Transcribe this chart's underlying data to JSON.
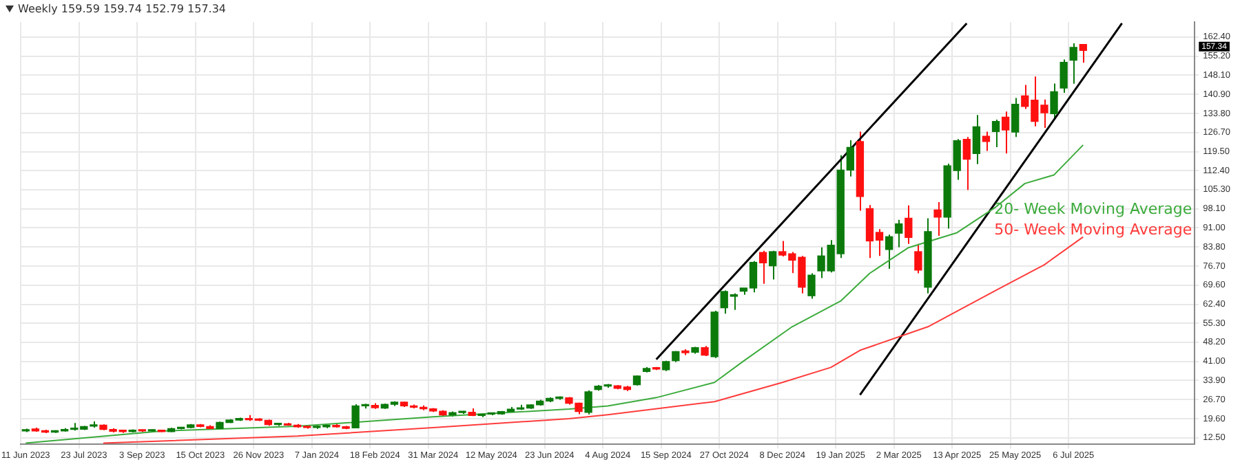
{
  "chart_data": {
    "type": "candlestick",
    "title": "Weekly 159.59 159.74 152.79 157.34",
    "categories": [
      "11 Jun 2023",
      null,
      null,
      null,
      null,
      null,
      "23 Jul 2023",
      null,
      null,
      null,
      null,
      null,
      "3 Sep 2023",
      null,
      null,
      null,
      null,
      null,
      "15 Oct 2023",
      null,
      null,
      null,
      null,
      null,
      "26 Nov 2023",
      null,
      null,
      null,
      null,
      null,
      "7 Jan 2024",
      null,
      null,
      null,
      null,
      null,
      "18 Feb 2024",
      null,
      null,
      null,
      null,
      null,
      "31 Mar 2024",
      null,
      null,
      null,
      null,
      null,
      "12 May 2024",
      null,
      null,
      null,
      null,
      null,
      "23 Jun 2024",
      null,
      null,
      null,
      null,
      null,
      "4 Aug 2024",
      null,
      null,
      null,
      null,
      null,
      "15 Sep 2024",
      null,
      null,
      null,
      null,
      null,
      "27 Oct 2024",
      null,
      null,
      null,
      null,
      null,
      "8 Dec 2024",
      null,
      null,
      null,
      null,
      null,
      "19 Jan 2025",
      null,
      null,
      null,
      null,
      null,
      "2 Mar 2025",
      null,
      null,
      null,
      null,
      null,
      "13 Apr 2025",
      null,
      null,
      null,
      null,
      null,
      "25 May 2025",
      null,
      null,
      null,
      null,
      null,
      "6 Jul 2025",
      null,
      null,
      null,
      null,
      null,
      null,
      null,
      null,
      null,
      null,
      null,
      null
    ],
    "ohlc": [
      [
        15.0,
        15.9,
        14.6,
        15.5
      ],
      [
        15.8,
        16.3,
        14.7,
        15.0
      ],
      [
        15.1,
        15.5,
        14.2,
        14.6
      ],
      [
        14.6,
        15.3,
        14.3,
        15.0
      ],
      [
        15.0,
        16.1,
        14.8,
        15.6
      ],
      [
        15.6,
        18.0,
        15.2,
        15.7
      ],
      [
        15.7,
        16.9,
        15.4,
        16.7
      ],
      [
        16.8,
        18.6,
        16.3,
        17.0
      ],
      [
        17.2,
        17.5,
        15.3,
        15.6
      ],
      [
        15.6,
        16.0,
        14.5,
        14.9
      ],
      [
        14.9,
        15.3,
        14.3,
        14.8
      ],
      [
        14.8,
        15.6,
        14.5,
        15.2
      ],
      [
        15.2,
        15.5,
        14.6,
        15.0
      ],
      [
        15.0,
        15.6,
        14.7,
        15.3
      ],
      [
        15.3,
        15.5,
        14.6,
        14.8
      ],
      [
        14.8,
        16.2,
        14.6,
        15.9
      ],
      [
        15.9,
        16.5,
        15.6,
        16.3
      ],
      [
        16.3,
        17.6,
        16.0,
        17.3
      ],
      [
        17.3,
        17.6,
        16.4,
        16.7
      ],
      [
        16.7,
        17.2,
        15.6,
        15.9
      ],
      [
        15.9,
        18.5,
        15.7,
        18.2
      ],
      [
        18.2,
        19.4,
        18.0,
        19.1
      ],
      [
        19.1,
        20.0,
        18.8,
        19.7
      ],
      [
        19.7,
        21.0,
        18.8,
        19.2
      ],
      [
        19.3,
        19.8,
        18.7,
        19.0
      ],
      [
        19.0,
        19.3,
        17.0,
        17.4
      ],
      [
        17.4,
        17.9,
        16.9,
        17.5
      ],
      [
        17.6,
        18.1,
        17.0,
        17.2
      ],
      [
        17.2,
        17.6,
        16.2,
        16.6
      ],
      [
        16.6,
        17.0,
        15.9,
        16.3
      ],
      [
        16.3,
        17.0,
        15.8,
        16.6
      ],
      [
        16.6,
        17.3,
        16.1,
        16.8
      ],
      [
        17.0,
        17.6,
        16.3,
        16.6
      ],
      [
        16.6,
        16.9,
        15.7,
        16.0
      ],
      [
        16.2,
        25.0,
        16.1,
        24.4
      ],
      [
        24.4,
        25.2,
        23.4,
        24.7
      ],
      [
        24.6,
        25.4,
        23.3,
        23.7
      ],
      [
        23.6,
        25.3,
        23.3,
        25.0
      ],
      [
        25.0,
        26.1,
        24.4,
        25.8
      ],
      [
        25.8,
        26.0,
        24.0,
        24.4
      ],
      [
        24.4,
        24.9,
        23.5,
        23.9
      ],
      [
        23.9,
        24.6,
        22.8,
        23.3
      ],
      [
        23.3,
        23.6,
        22.1,
        22.5
      ],
      [
        22.4,
        22.8,
        20.6,
        21.0
      ],
      [
        21.0,
        22.3,
        20.4,
        21.9
      ],
      [
        21.9,
        22.5,
        21.4,
        22.0
      ],
      [
        22.0,
        23.5,
        20.6,
        20.8
      ],
      [
        20.8,
        21.6,
        20.2,
        21.3
      ],
      [
        21.3,
        21.8,
        20.9,
        21.4
      ],
      [
        21.4,
        22.5,
        21.1,
        22.3
      ],
      [
        22.3,
        24.0,
        22.0,
        23.2
      ],
      [
        23.2,
        24.8,
        22.9,
        23.6
      ],
      [
        23.6,
        25.0,
        23.3,
        24.8
      ],
      [
        24.8,
        26.7,
        24.5,
        26.2
      ],
      [
        26.2,
        27.6,
        25.8,
        27.2
      ],
      [
        27.2,
        28.0,
        26.7,
        27.4
      ],
      [
        27.4,
        27.7,
        24.9,
        25.4
      ],
      [
        25.4,
        25.6,
        21.3,
        22.3
      ],
      [
        22.0,
        30.2,
        21.2,
        29.7
      ],
      [
        30.5,
        32.2,
        30.1,
        31.8
      ],
      [
        31.8,
        32.6,
        31.2,
        31.9
      ],
      [
        31.9,
        32.2,
        30.6,
        31.0
      ],
      [
        31.5,
        31.9,
        30.0,
        30.5
      ],
      [
        32.3,
        35.8,
        32.0,
        35.6
      ],
      [
        37.3,
        38.9,
        36.9,
        38.4
      ],
      [
        38.4,
        39.0,
        37.8,
        38.2
      ],
      [
        37.9,
        41.3,
        37.4,
        41.0
      ],
      [
        41.3,
        44.9,
        40.8,
        44.7
      ],
      [
        45.0,
        45.6,
        43.4,
        44.3
      ],
      [
        44.5,
        46.5,
        43.9,
        46.2
      ],
      [
        46.2,
        46.8,
        43.0,
        43.4
      ],
      [
        42.8,
        60.0,
        42.3,
        59.5
      ],
      [
        61.1,
        67.6,
        58.9,
        67.2
      ],
      [
        65.4,
        66.5,
        60.3,
        66.0
      ],
      [
        67.3,
        68.5,
        66.0,
        68.5
      ],
      [
        68.5,
        78.6,
        66.9,
        78.1
      ],
      [
        81.8,
        82.4,
        70.1,
        77.9
      ],
      [
        76.8,
        82.4,
        71.7,
        82.1
      ],
      [
        82.1,
        86.1,
        80.3,
        80.8
      ],
      [
        81.3,
        82.0,
        74.1,
        78.9
      ],
      [
        80.0,
        80.5,
        66.5,
        68.8
      ],
      [
        65.6,
        74.0,
        64.5,
        73.3
      ],
      [
        74.9,
        83.7,
        72.2,
        80.5
      ],
      [
        74.9,
        86.4,
        74.3,
        84.5
      ],
      [
        81.3,
        118.2,
        79.7,
        112.6
      ],
      [
        112.6,
        123.8,
        110.2,
        121.1
      ],
      [
        123.3,
        127.0,
        97.4,
        102.7
      ],
      [
        98.2,
        99.5,
        79.7,
        86.1
      ],
      [
        89.3,
        90.5,
        80.5,
        86.4
      ],
      [
        82.9,
        88.5,
        75.7,
        87.7
      ],
      [
        89.0,
        94.0,
        83.7,
        92.5
      ],
      [
        94.6,
        99.4,
        85.0,
        87.4
      ],
      [
        82.1,
        85.0,
        74.0,
        75.2
      ],
      [
        68.8,
        94.6,
        66.5,
        89.6
      ],
      [
        97.7,
        100.6,
        88.0,
        95.0
      ],
      [
        95.0,
        115.0,
        90.7,
        114.2
      ],
      [
        112.4,
        124.2,
        109.0,
        123.6
      ],
      [
        124.1,
        125.0,
        105.2,
        116.7
      ],
      [
        118.8,
        133.2,
        114.8,
        128.8
      ],
      [
        125.3,
        127.0,
        119.8,
        123.3
      ],
      [
        127.0,
        131.5,
        121.2,
        130.8
      ],
      [
        132.4,
        134.5,
        118.8,
        127.6
      ],
      [
        126.8,
        139.6,
        125.0,
        137.2
      ],
      [
        140.4,
        144.5,
        135.5,
        136.4
      ],
      [
        138.8,
        147.6,
        129.0,
        130.8
      ],
      [
        136.9,
        139.0,
        128.4,
        134.0
      ],
      [
        133.7,
        145.0,
        132.0,
        141.9
      ],
      [
        143.3,
        154.0,
        141.5,
        152.9
      ],
      [
        153.7,
        160.0,
        144.9,
        158.5
      ],
      [
        159.59,
        159.74,
        152.79,
        157.34
      ],
      null,
      null,
      null,
      null,
      null,
      null,
      null,
      null,
      null,
      null,
      null
    ],
    "series": [
      {
        "name": "20- Week Moving Average",
        "type": "line",
        "color": "#3cab3c",
        "values": [
          10.5,
          null,
          null,
          null,
          null,
          null,
          null,
          null,
          null,
          null,
          null,
          null,
          null,
          null,
          15.0,
          null,
          null,
          null,
          null,
          null,
          null,
          null,
          null,
          null,
          null,
          null,
          null,
          null,
          16.8,
          null,
          null,
          null,
          null,
          null,
          null,
          null,
          null,
          null,
          null,
          null,
          null,
          null,
          20.3,
          null,
          null,
          null,
          null,
          null,
          null,
          null,
          null,
          null,
          null,
          null,
          null,
          null,
          23.2,
          null,
          null,
          null,
          24.4,
          null,
          null,
          null,
          null,
          27.5,
          null,
          null,
          null,
          null,
          null,
          33.2,
          null,
          null,
          41.2,
          null,
          null,
          null,
          null,
          54.0,
          null,
          null,
          null,
          null,
          63.6,
          null,
          null,
          74.0,
          null,
          null,
          null,
          83.6,
          null,
          null,
          null,
          null,
          89.2,
          null,
          null,
          null,
          98.8,
          null,
          null,
          107.6,
          null,
          null,
          110.8,
          null,
          null,
          122.0,
          null,
          null,
          null,
          null,
          null,
          null,
          null,
          null,
          null,
          null,
          null
        ]
      },
      {
        "name": "50- Week Moving Average",
        "type": "line",
        "color": "#ff3b3b",
        "values": [
          null,
          null,
          null,
          null,
          null,
          null,
          null,
          null,
          10.5,
          null,
          null,
          null,
          null,
          null,
          null,
          null,
          null,
          null,
          null,
          null,
          null,
          null,
          null,
          null,
          null,
          null,
          null,
          null,
          13.1,
          null,
          null,
          null,
          null,
          null,
          null,
          null,
          null,
          null,
          null,
          null,
          null,
          null,
          16.3,
          null,
          null,
          null,
          null,
          null,
          null,
          null,
          null,
          null,
          null,
          null,
          null,
          null,
          19.6,
          null,
          null,
          null,
          21.1,
          null,
          null,
          null,
          null,
          null,
          null,
          null,
          null,
          null,
          null,
          26.0,
          null,
          null,
          null,
          null,
          null,
          null,
          33.2,
          null,
          null,
          null,
          null,
          38.8,
          null,
          null,
          45.2,
          null,
          null,
          null,
          null,
          null,
          null,
          54.0,
          null,
          null,
          null,
          null,
          null,
          null,
          67.6,
          null,
          null,
          null,
          null,
          77.2,
          null,
          null,
          null,
          87.6,
          null,
          null,
          null,
          null,
          null,
          null,
          null,
          null,
          null,
          null,
          null
        ]
      },
      {
        "type": "line",
        "color": "#000000",
        "values": [
          null,
          null,
          null,
          null,
          null,
          null,
          null,
          null,
          null,
          null,
          null,
          null,
          null,
          null,
          null,
          null,
          null,
          null,
          null,
          null,
          null,
          null,
          null,
          null,
          null,
          null,
          null,
          null,
          null,
          null,
          null,
          null,
          null,
          null,
          null,
          null,
          null,
          null,
          null,
          null,
          null,
          null,
          null,
          null,
          null,
          null,
          null,
          null,
          null,
          null,
          null,
          null,
          null,
          null,
          null,
          null,
          null,
          null,
          null,
          null,
          null,
          null,
          null,
          null,
          null,
          41.8,
          null,
          null,
          null,
          null,
          null,
          null,
          null,
          null,
          null,
          null,
          null,
          null,
          null,
          null,
          null,
          null,
          null,
          null,
          null,
          null,
          null,
          null,
          null,
          null,
          null,
          null,
          null,
          null,
          null,
          null,
          null,
          167.5,
          null,
          null,
          null,
          null,
          null,
          null,
          null,
          null,
          null,
          null,
          null,
          null,
          null,
          null,
          null,
          null,
          null,
          null,
          null,
          null,
          null,
          null,
          null
        ]
      },
      {
        "type": "line",
        "color": "#000000",
        "values": [
          null,
          null,
          null,
          null,
          null,
          null,
          null,
          null,
          null,
          null,
          null,
          null,
          null,
          null,
          null,
          null,
          null,
          null,
          null,
          null,
          null,
          null,
          null,
          null,
          null,
          null,
          null,
          null,
          null,
          null,
          null,
          null,
          null,
          null,
          null,
          null,
          null,
          null,
          null,
          null,
          null,
          null,
          null,
          null,
          null,
          null,
          null,
          null,
          null,
          null,
          null,
          null,
          null,
          null,
          null,
          null,
          null,
          null,
          null,
          null,
          null,
          null,
          null,
          null,
          null,
          null,
          null,
          null,
          null,
          null,
          null,
          null,
          null,
          null,
          null,
          null,
          null,
          null,
          null,
          null,
          null,
          null,
          null,
          null,
          null,
          null,
          28.5,
          null,
          null,
          null,
          null,
          null,
          null,
          null,
          null,
          null,
          null,
          null,
          null,
          null,
          null,
          null,
          null,
          null,
          null,
          null,
          null,
          null,
          null,
          null,
          null,
          null,
          null,
          167.5,
          null,
          null,
          null,
          null,
          null,
          null,
          null
        ]
      }
    ],
    "ylim": [
      10,
      168
    ],
    "yticks": [
      {
        "value": 12.5,
        "label": "12.50"
      },
      {
        "value": 19.6,
        "label": "19.60"
      },
      {
        "value": 26.7,
        "label": "26.70"
      },
      {
        "value": 33.9,
        "label": "33.90"
      },
      {
        "value": 41.0,
        "label": "41.00"
      },
      {
        "value": 48.2,
        "label": "48.20"
      },
      {
        "value": 55.3,
        "label": "55.30"
      },
      {
        "value": 62.4,
        "label": "62.40"
      },
      {
        "value": 69.6,
        "label": "69.60"
      },
      {
        "value": 76.7,
        "label": "76.70"
      },
      {
        "value": 83.8,
        "label": "83.80"
      },
      {
        "value": 91.0,
        "label": "91.00"
      },
      {
        "value": 98.1,
        "label": "98.10"
      },
      {
        "value": 105.3,
        "label": "105.30"
      },
      {
        "value": 112.4,
        "label": "112.40"
      },
      {
        "value": 119.5,
        "label": "119.50"
      },
      {
        "value": 126.7,
        "label": "126.70"
      },
      {
        "value": 133.8,
        "label": "133.80"
      },
      {
        "value": 140.9,
        "label": "140.90"
      },
      {
        "value": 148.1,
        "label": "148.10"
      },
      {
        "value": 155.2,
        "label": "155.20"
      },
      {
        "value": 162.4,
        "label": "162.40"
      }
    ],
    "annotations": [
      "157.34"
    ],
    "grid": true,
    "legend": false
  }
}
